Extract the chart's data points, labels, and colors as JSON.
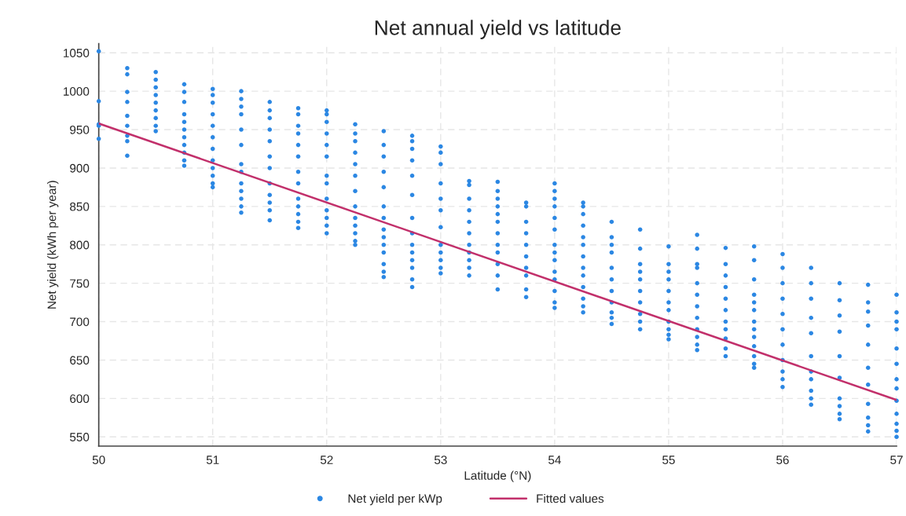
{
  "chart_data": {
    "type": "scatter",
    "title": "Net annual yield vs latitude",
    "xlabel": "Latitude (°N)",
    "ylabel": "Net yield (kWh per year)",
    "xlim": [
      50,
      57
    ],
    "xticks": [
      50,
      51,
      52,
      53,
      54,
      55,
      56,
      57
    ],
    "ylim": [
      538,
      1062
    ],
    "yticks": [
      550,
      600,
      650,
      700,
      750,
      800,
      850,
      900,
      950,
      1000,
      1050
    ],
    "grid": true,
    "legend": "bottom",
    "marker": "circle",
    "series": [
      {
        "name": "Net yield per kWp",
        "color": "#2b87e3",
        "x": [
          50,
          50,
          50,
          50,
          50,
          50.25,
          50.25,
          50.25,
          50.25,
          50.25,
          50.25,
          50.25,
          50.25,
          50.25,
          50.5,
          50.5,
          50.5,
          50.5,
          50.5,
          50.5,
          50.5,
          50.5,
          50.5,
          50.75,
          50.75,
          50.75,
          50.75,
          50.75,
          50.75,
          50.75,
          50.75,
          50.75,
          50.75,
          50.75,
          51,
          51,
          51,
          51,
          51,
          51,
          51,
          51,
          51,
          51,
          51,
          51,
          51.25,
          51.25,
          51.25,
          51.25,
          51.25,
          51.25,
          51.25,
          51.25,
          51.25,
          51.25,
          51.25,
          51.25,
          51.25,
          51.5,
          51.5,
          51.5,
          51.5,
          51.5,
          51.5,
          51.5,
          51.5,
          51.5,
          51.5,
          51.5,
          51.5,
          51.75,
          51.75,
          51.75,
          51.75,
          51.75,
          51.75,
          51.75,
          51.75,
          51.75,
          51.75,
          51.75,
          51.75,
          51.75,
          52,
          52,
          52,
          52,
          52,
          52,
          52,
          52,
          52,
          52,
          52,
          52,
          52,
          52.25,
          52.25,
          52.25,
          52.25,
          52.25,
          52.25,
          52.25,
          52.25,
          52.25,
          52.25,
          52.25,
          52.25,
          52.25,
          52.5,
          52.5,
          52.5,
          52.5,
          52.5,
          52.5,
          52.5,
          52.5,
          52.5,
          52.5,
          52.5,
          52.5,
          52.5,
          52.5,
          52.75,
          52.75,
          52.75,
          52.75,
          52.75,
          52.75,
          52.75,
          52.75,
          52.75,
          52.75,
          52.75,
          52.75,
          52.75,
          52.75,
          53,
          53,
          53,
          53,
          53,
          53,
          53,
          53,
          53,
          53,
          53,
          53,
          53.25,
          53.25,
          53.25,
          53.25,
          53.25,
          53.25,
          53.25,
          53.25,
          53.25,
          53.25,
          53.25,
          53.5,
          53.5,
          53.5,
          53.5,
          53.5,
          53.5,
          53.5,
          53.5,
          53.5,
          53.5,
          53.5,
          53.5,
          53.75,
          53.75,
          53.75,
          53.75,
          53.75,
          53.75,
          53.75,
          53.75,
          53.75,
          53.75,
          54,
          54,
          54,
          54,
          54,
          54,
          54,
          54,
          54,
          54,
          54,
          54,
          54,
          54,
          54.25,
          54.25,
          54.25,
          54.25,
          54.25,
          54.25,
          54.25,
          54.25,
          54.25,
          54.25,
          54.25,
          54.25,
          54.25,
          54.5,
          54.5,
          54.5,
          54.5,
          54.5,
          54.5,
          54.5,
          54.5,
          54.5,
          54.5,
          54.5,
          54.75,
          54.75,
          54.75,
          54.75,
          54.75,
          54.75,
          54.75,
          54.75,
          54.75,
          54.75,
          55,
          55,
          55,
          55,
          55,
          55,
          55,
          55,
          55,
          55,
          55,
          55.25,
          55.25,
          55.25,
          55.25,
          55.25,
          55.25,
          55.25,
          55.25,
          55.25,
          55.25,
          55.25,
          55.25,
          55.5,
          55.5,
          55.5,
          55.5,
          55.5,
          55.5,
          55.5,
          55.5,
          55.5,
          55.5,
          55.5,
          55.75,
          55.75,
          55.75,
          55.75,
          55.75,
          55.75,
          55.75,
          55.75,
          55.75,
          55.75,
          55.75,
          55.75,
          55.75,
          56,
          56,
          56,
          56,
          56,
          56,
          56,
          56,
          56,
          56,
          56,
          56.25,
          56.25,
          56.25,
          56.25,
          56.25,
          56.25,
          56.25,
          56.25,
          56.25,
          56.25,
          56.25,
          56.5,
          56.5,
          56.5,
          56.5,
          56.5,
          56.5,
          56.5,
          56.5,
          56.5,
          56.5,
          56.75,
          56.75,
          56.75,
          56.75,
          56.75,
          56.75,
          56.75,
          56.75,
          56.75,
          56.75,
          56.75,
          57,
          57,
          57,
          57,
          57,
          57,
          57,
          57,
          57,
          57,
          57,
          57,
          57
        ],
        "values": [
          1052,
          987,
          957,
          955,
          938,
          1030,
          1022,
          999,
          986,
          968,
          955,
          942,
          935,
          916,
          1025,
          1015,
          1005,
          995,
          985,
          975,
          965,
          955,
          948,
          1009,
          999,
          986,
          970,
          960,
          950,
          940,
          930,
          920,
          910,
          903,
          1003,
          995,
          985,
          970,
          955,
          940,
          925,
          910,
          900,
          890,
          880,
          875,
          1000,
          990,
          980,
          970,
          950,
          930,
          905,
          895,
          880,
          870,
          860,
          850,
          842,
          986,
          975,
          965,
          950,
          935,
          915,
          900,
          880,
          865,
          855,
          845,
          832,
          978,
          970,
          955,
          945,
          930,
          915,
          895,
          880,
          860,
          850,
          840,
          830,
          822,
          975,
          970,
          960,
          945,
          930,
          915,
          890,
          880,
          860,
          845,
          835,
          825,
          815,
          957,
          945,
          935,
          920,
          905,
          890,
          870,
          850,
          835,
          825,
          815,
          805,
          800,
          948,
          930,
          915,
          895,
          875,
          850,
          835,
          820,
          810,
          800,
          790,
          775,
          765,
          758,
          942,
          935,
          925,
          910,
          890,
          865,
          835,
          815,
          800,
          790,
          780,
          770,
          755,
          745,
          928,
          920,
          905,
          880,
          860,
          845,
          823,
          800,
          790,
          780,
          770,
          763,
          883,
          878,
          860,
          845,
          830,
          815,
          800,
          790,
          780,
          770,
          760,
          882,
          870,
          860,
          850,
          840,
          830,
          815,
          800,
          790,
          775,
          760,
          742,
          855,
          850,
          830,
          815,
          800,
          785,
          770,
          760,
          742,
          732,
          880,
          870,
          860,
          850,
          835,
          820,
          800,
          790,
          780,
          765,
          755,
          740,
          725,
          718,
          855,
          850,
          840,
          825,
          810,
          800,
          785,
          770,
          760,
          745,
          730,
          720,
          712,
          830,
          810,
          800,
          790,
          770,
          755,
          740,
          725,
          712,
          705,
          697,
          820,
          795,
          775,
          765,
          755,
          740,
          725,
          710,
          700,
          690,
          798,
          775,
          765,
          755,
          740,
          725,
          715,
          700,
          690,
          683,
          677,
          813,
          795,
          775,
          770,
          750,
          735,
          720,
          705,
          690,
          680,
          670,
          663,
          796,
          775,
          760,
          745,
          730,
          715,
          700,
          690,
          678,
          665,
          655,
          798,
          780,
          755,
          735,
          725,
          715,
          700,
          690,
          680,
          668,
          655,
          645,
          640,
          788,
          770,
          750,
          730,
          710,
          690,
          670,
          650,
          635,
          625,
          615,
          770,
          750,
          730,
          705,
          685,
          655,
          635,
          625,
          610,
          600,
          592,
          750,
          728,
          708,
          687,
          655,
          627,
          600,
          590,
          580,
          573,
          748,
          725,
          713,
          695,
          670,
          640,
          618,
          593,
          575,
          565,
          557,
          735,
          712,
          700,
          690,
          665,
          645,
          625,
          613,
          597,
          580,
          567,
          558,
          550
        ]
      },
      {
        "name": "Fitted values",
        "type": "line",
        "color": "#c2306b",
        "line_style": "solid",
        "marker": "none",
        "x": [
          50,
          57
        ],
        "values": [
          958,
          598
        ]
      }
    ]
  }
}
